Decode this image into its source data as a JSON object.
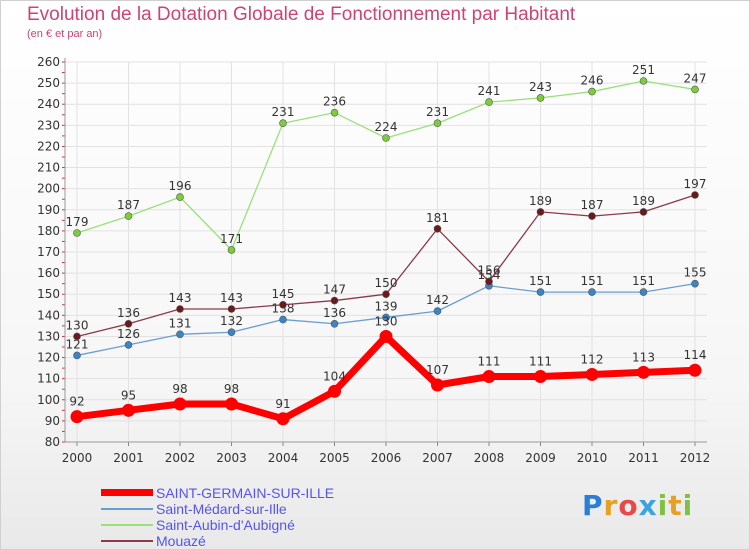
{
  "title": "Evolution de la Dotation Globale de Fonctionnement par Habitant",
  "subtitle": "(en € et par an)",
  "brand": {
    "text": "Proxiti",
    "letter_colors": [
      "#2a7fd4",
      "#e8a020",
      "#e84a4a",
      "#3aa3e0",
      "#7dc242",
      "#e8a020",
      "#7dc242"
    ]
  },
  "chart_data": {
    "type": "line",
    "x": [
      "2000",
      "2001",
      "2002",
      "2003",
      "2004",
      "2005",
      "2006",
      "2007",
      "2008",
      "2009",
      "2010",
      "2011",
      "2012"
    ],
    "ylim": [
      80,
      260
    ],
    "yticks": [
      80,
      90,
      100,
      110,
      120,
      130,
      140,
      150,
      160,
      170,
      180,
      190,
      200,
      210,
      220,
      230,
      240,
      250,
      260
    ],
    "grid": true,
    "series": [
      {
        "name": "SAINT-GERMAIN-SUR-ILLE",
        "color": "#ff0000",
        "marker": "#ff0000",
        "width": 7,
        "values": [
          92,
          95,
          98,
          98,
          91,
          104,
          130,
          107,
          111,
          111,
          112,
          113,
          114
        ],
        "labels": [
          "92",
          "95",
          "98",
          "98",
          "91",
          "104",
          "130",
          "107",
          "111",
          "111",
          "112",
          "113",
          "114"
        ]
      },
      {
        "name": "Saint-Médard-sur-Ille",
        "color": "#6a9ecf",
        "marker": "#3a84c8",
        "width": 1.3,
        "values": [
          121,
          126,
          131,
          132,
          138,
          136,
          139,
          142,
          154,
          151,
          151,
          151,
          155
        ],
        "labels": [
          "121",
          "126",
          "131",
          "132",
          "138",
          "136",
          "139",
          "142",
          "154",
          "151",
          "151",
          "151",
          "155"
        ]
      },
      {
        "name": "Saint-Aubin-d'Aubigné",
        "color": "#9be07a",
        "marker": "#7dcc3c",
        "width": 1.3,
        "values": [
          179,
          187,
          196,
          171,
          231,
          236,
          224,
          231,
          241,
          243,
          246,
          251,
          247
        ],
        "labels": [
          "179",
          "187",
          "196",
          "171",
          "231",
          "236",
          "224",
          "231",
          "241",
          "243",
          "246",
          "251",
          "247"
        ]
      },
      {
        "name": "Mouazé",
        "color": "#8a3a4a",
        "marker": "#6a1a1a",
        "width": 1.3,
        "values": [
          130,
          136,
          143,
          143,
          145,
          147,
          150,
          181,
          156,
          189,
          187,
          189,
          197
        ],
        "labels": [
          "130",
          "136",
          "143",
          "143",
          "145",
          "147",
          "150",
          "181",
          "156",
          "189",
          "187",
          "189",
          "197"
        ]
      }
    ]
  }
}
